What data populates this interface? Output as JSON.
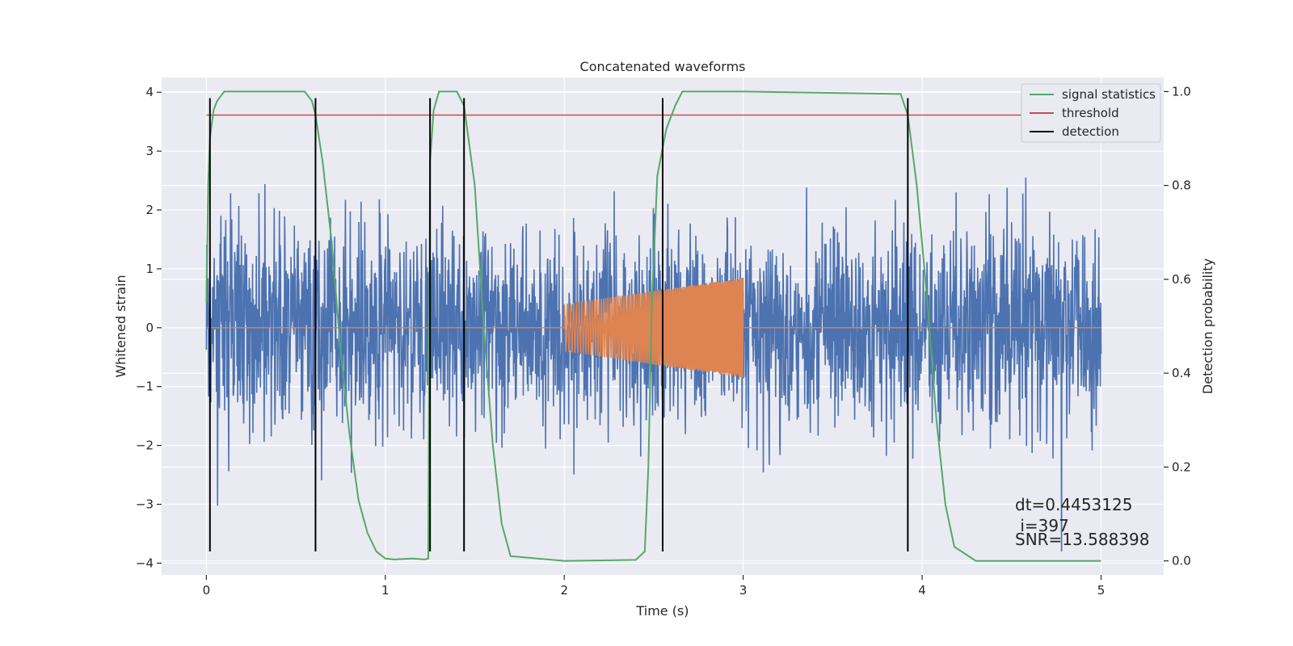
{
  "chart_data": {
    "type": "line",
    "title": "Concatenated waveforms",
    "xlabel": "Time (s)",
    "ylabel": "Whitened strain",
    "y2label": "Detection probability",
    "xlim": [
      -0.25,
      5.35
    ],
    "ylim": [
      -4.2,
      4.25
    ],
    "y2lim": [
      -0.03,
      1.03
    ],
    "x_ticks": [
      0,
      1,
      2,
      3,
      4,
      5
    ],
    "y_ticks": [
      -4,
      -3,
      -2,
      -1,
      0,
      1,
      2,
      3,
      4
    ],
    "y2_ticks": [
      0.0,
      0.2,
      0.4,
      0.6,
      0.8,
      1.0
    ],
    "x_tick_labels": [
      "0",
      "1",
      "2",
      "3",
      "4",
      "5"
    ],
    "y_tick_labels": [
      "−4",
      "−3",
      "−2",
      "−1",
      "0",
      "1",
      "2",
      "3",
      "4"
    ],
    "y2_tick_labels": [
      "0.0",
      "0.2",
      "0.4",
      "0.6",
      "0.8",
      "1.0"
    ],
    "grid": true,
    "legend_position": "top-right",
    "legend": [
      {
        "label": "signal statistics",
        "color": "#55a868"
      },
      {
        "label": "threshold",
        "color": "#c44e52"
      },
      {
        "label": "detection",
        "color": "#000000"
      }
    ],
    "colors": {
      "strain": "#4c72b0",
      "injection": "#dd8452",
      "signal_statistics": "#55a868",
      "threshold": "#c44e52",
      "detection": "#000000",
      "plot_background": "#eaeaf2"
    },
    "strain": {
      "x_start": 0,
      "x_end": 5,
      "typical_amplitude": 1.5,
      "max_abs": 3.8
    },
    "injection": {
      "x_start": 2,
      "x_end": 3,
      "amplitude_start": 0.4,
      "amplitude_end": 0.85
    },
    "threshold": {
      "x": [
        0,
        5
      ],
      "y2": 0.95
    },
    "detections": [
      0.02,
      0.61,
      1.25,
      1.44,
      2.55,
      3.92
    ],
    "detection_ylim": [
      -3.8,
      3.9
    ],
    "signal_statistics": {
      "x": [
        0.0,
        0.01,
        0.02,
        0.04,
        0.06,
        0.1,
        0.3,
        0.55,
        0.59,
        0.61,
        0.65,
        0.7,
        0.75,
        0.8,
        0.85,
        0.9,
        0.95,
        1.0,
        1.05,
        1.15,
        1.22,
        1.24,
        1.25,
        1.27,
        1.3,
        1.4,
        1.44,
        1.5,
        1.55,
        1.6,
        1.65,
        1.7,
        2.0,
        2.4,
        2.45,
        2.47,
        2.49,
        2.52,
        2.57,
        2.62,
        2.66,
        3.0,
        3.88,
        3.92,
        3.97,
        4.03,
        4.08,
        4.13,
        4.18,
        4.3,
        5.0
      ],
      "y": [
        0.55,
        0.8,
        0.9,
        0.96,
        0.98,
        1.0,
        1.0,
        1.0,
        0.98,
        0.95,
        0.85,
        0.68,
        0.45,
        0.27,
        0.13,
        0.06,
        0.02,
        0.005,
        0.003,
        0.005,
        0.003,
        0.005,
        0.85,
        0.96,
        1.0,
        1.0,
        0.97,
        0.8,
        0.5,
        0.25,
        0.08,
        0.01,
        0.0,
        0.002,
        0.02,
        0.2,
        0.55,
        0.82,
        0.92,
        0.97,
        1.0,
        1.0,
        0.995,
        0.95,
        0.8,
        0.55,
        0.3,
        0.12,
        0.03,
        0.0,
        0.0
      ]
    },
    "annotations": [
      "dt=0.4453125",
      " i=397",
      "SNR=13.588398"
    ]
  }
}
